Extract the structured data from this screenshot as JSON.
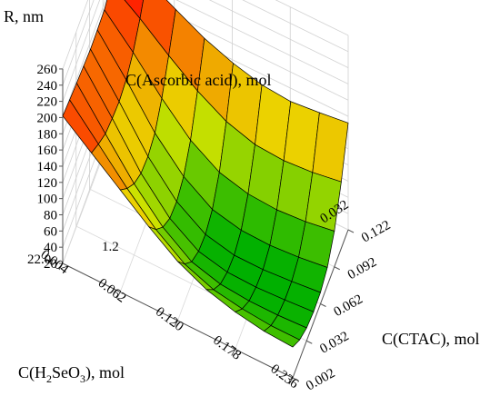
{
  "chart_data": {
    "type": "surface3d",
    "title": "",
    "zlabel": "R, nm",
    "top_label": "C(Ascorbic acid), mol",
    "xlabel_parts": [
      "C(H",
      "2",
      "SeO",
      "3",
      "), mol"
    ],
    "ylabel": "C(CTAC), mol",
    "z_ticks": [
      "20",
      "40",
      "60",
      "80",
      "100",
      "120",
      "140",
      "160",
      "180",
      "200",
      "220",
      "240",
      "260"
    ],
    "zlim": [
      20,
      260
    ],
    "x_ticks": [
      "0.004",
      "0.062",
      "0.120",
      "0.178",
      "0.236"
    ],
    "xlim": [
      0.004,
      0.236
    ],
    "y_ticks": [
      "0.002",
      "0.032",
      "0.062",
      "0.092",
      "0.122"
    ],
    "ylim": [
      0.002,
      0.122
    ],
    "partial_labels": [
      "22.0",
      "1.2",
      "0.032"
    ],
    "grid": true,
    "surface_colors": {
      "low": "#00b000",
      "mid": "#e8e800",
      "high": "#ff2000",
      "mesh": "#000000",
      "overflow": "#c8c8c8"
    },
    "surface_grid": {
      "x": [
        0.004,
        0.033,
        0.062,
        0.091,
        0.12,
        0.149,
        0.178,
        0.207,
        0.236
      ],
      "y": [
        0.002,
        0.017,
        0.032,
        0.047,
        0.062,
        0.077,
        0.092,
        0.107,
        0.122
      ],
      "z": [
        [
          202,
          199,
          197,
          195,
          193,
          194,
          196,
          205,
          225
        ],
        [
          174,
          162,
          152,
          148,
          146,
          150,
          161,
          180,
          205
        ],
        [
          146,
          125,
          108,
          98,
          96,
          102,
          122,
          152,
          186
        ],
        [
          118,
          92,
          72,
          60,
          58,
          66,
          88,
          126,
          168
        ],
        [
          93,
          67,
          47,
          37,
          35,
          43,
          66,
          106,
          155
        ],
        [
          76,
          53,
          37,
          29,
          27,
          35,
          57,
          95,
          146
        ],
        [
          66,
          47,
          34,
          28,
          27,
          34,
          55,
          93,
          143
        ],
        [
          60,
          44,
          34,
          30,
          30,
          37,
          58,
          96,
          147
        ],
        [
          58,
          44,
          36,
          33,
          34,
          42,
          64,
          102,
          152
        ]
      ]
    }
  }
}
